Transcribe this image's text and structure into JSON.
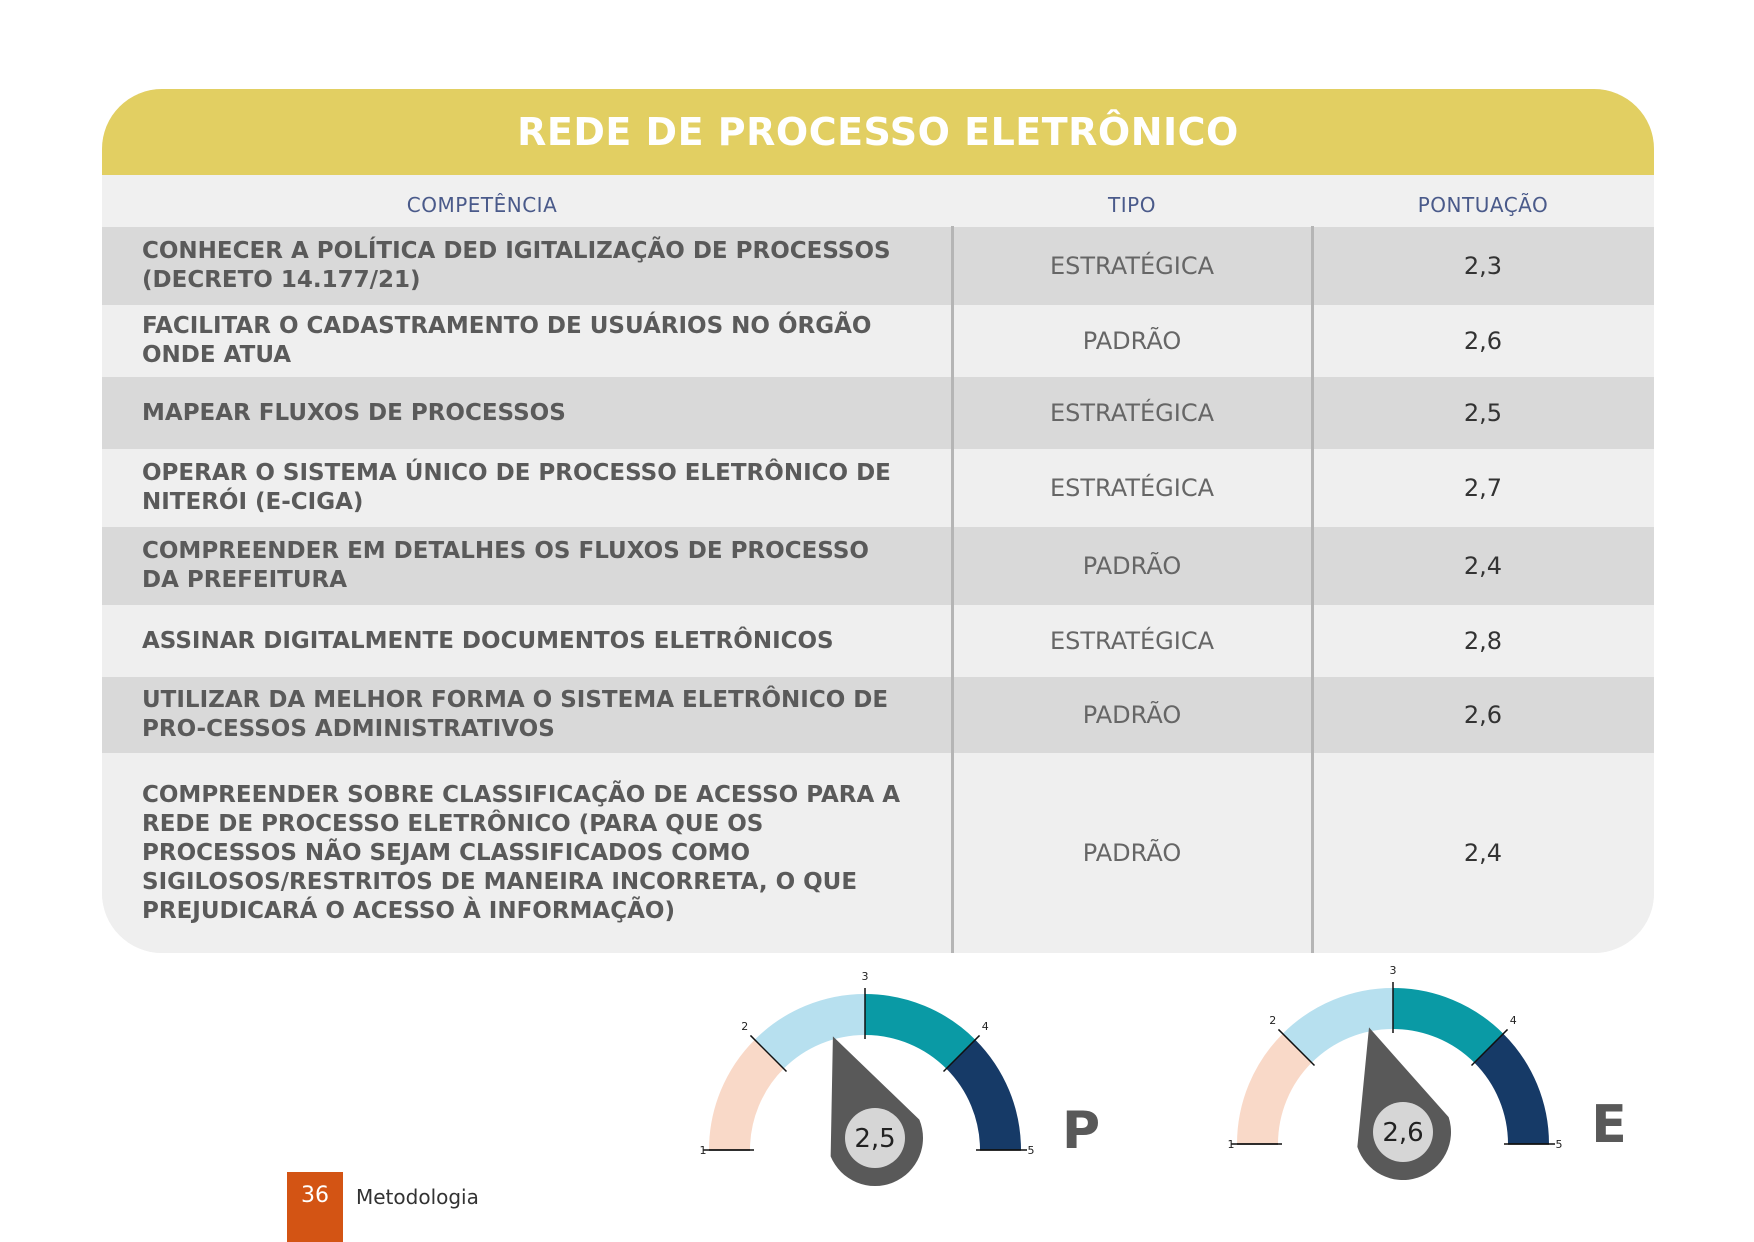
{
  "table": {
    "title": "REDE DE PROCESSO ELETRÔNICO",
    "headers": [
      "COMPETÊNCIA",
      "TIPO",
      "PONTUAÇÃO"
    ],
    "rows": [
      {
        "competencia": "CONHECER A POLÍTICA DED IGITALIZAÇÃO DE PROCESSOS (DECRETO 14.177/21)",
        "tipo": "ESTRATÉGICA",
        "pontuacao": "2,3"
      },
      {
        "competencia": "FACILITAR O CADASTRAMENTO DE USUÁRIOS NO ÓRGÃO ONDE ATUA",
        "tipo": "PADRÃO",
        "pontuacao": "2,6"
      },
      {
        "competencia": "MAPEAR FLUXOS DE PROCESSOS",
        "tipo": "ESTRATÉGICA",
        "pontuacao": "2,5"
      },
      {
        "competencia": "OPERAR O SISTEMA ÚNICO DE PROCESSO ELETRÔNICO DE NITERÓI (E-CIGA)",
        "tipo": "ESTRATÉGICA",
        "pontuacao": "2,7"
      },
      {
        "competencia": "COMPREENDER EM DETALHES OS FLUXOS DE PROCESSO DA PREFEITURA",
        "tipo": "PADRÃO",
        "pontuacao": "2,4"
      },
      {
        "competencia": "ASSINAR DIGITALMENTE DOCUMENTOS ELETRÔNICOS",
        "tipo": "ESTRATÉGICA",
        "pontuacao": "2,8"
      },
      {
        "competencia": "UTILIZAR DA MELHOR FORMA O SISTEMA ELETRÔNICO DE PRO-CESSOS ADMINISTRATIVOS",
        "tipo": "PADRÃO",
        "pontuacao": "2,6"
      },
      {
        "competencia": "COMPREENDER SOBRE CLASSIFICAÇÃO DE ACESSO PARA A REDE DE PROCESSO ELETRÔNICO (PARA QUE OS PROCESSOS NÃO SEJAM CLASSIFICADOS COMO SIGILOSOS/RESTRITOS DE MANEIRA INCORRETA, O QUE PREJUDICARÁ O ACESSO À INFORMAÇÃO)",
        "tipo": "PADRÃO",
        "pontuacao": "2,4"
      }
    ]
  },
  "gauges": [
    {
      "letter": "P",
      "value": 2.5,
      "label": "2,5",
      "ticks": [
        "1",
        "2",
        "3",
        "4",
        "5"
      ]
    },
    {
      "letter": "E",
      "value": 2.6,
      "label": "2,6",
      "ticks": [
        "1",
        "2",
        "3",
        "4",
        "5"
      ]
    }
  ],
  "gauge_colors": [
    "#f9d9c8",
    "#b7e0ef",
    "#0a9aa5",
    "#163a67"
  ],
  "footer": {
    "page_number": "36",
    "section": "Metodologia"
  },
  "colors": {
    "header": "#e2cf62",
    "row_dark": "#d9d9d9",
    "row_light": "#efefef",
    "footer_accent": "#d35414",
    "needle": "#595959"
  }
}
